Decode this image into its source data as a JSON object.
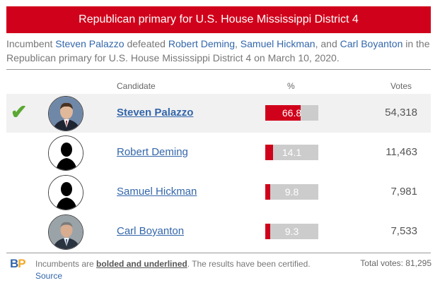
{
  "header": {
    "title": "Republican primary for U.S. House Mississippi District 4"
  },
  "intro": {
    "prefix": "Incumbent ",
    "winner": "Steven Palazzo",
    "defeated": " defeated ",
    "c1": "Robert Deming",
    "comma1": ", ",
    "c2": "Samuel Hickman",
    "and": ", and ",
    "c3": "Carl Boyanton",
    "suffix": " in the Republican primary for U.S. House Mississippi District 4 on March 10, 2020."
  },
  "columns": {
    "candidate": "Candidate",
    "pct": "%",
    "votes": "Votes"
  },
  "candidates": [
    {
      "name": "Steven Palazzo",
      "pct": "66.8",
      "pct_value": 66.8,
      "votes": "54,318",
      "winner": true,
      "incumbent": true,
      "avatar": "photo-avatar"
    },
    {
      "name": "Robert Deming",
      "pct": "14.1",
      "pct_value": 14.1,
      "votes": "11,463",
      "winner": false,
      "incumbent": false,
      "avatar": "silhouette-icon"
    },
    {
      "name": "Samuel Hickman",
      "pct": "9.8",
      "pct_value": 9.8,
      "votes": "7,981",
      "winner": false,
      "incumbent": false,
      "avatar": "silhouette-icon"
    },
    {
      "name": "Carl Boyanton",
      "pct": "9.3",
      "pct_value": 9.3,
      "votes": "7,533",
      "winner": false,
      "incumbent": false,
      "avatar": "photo-avatar"
    }
  ],
  "footer": {
    "logo_b": "B",
    "logo_p": "P",
    "note_prefix": "Incumbents are ",
    "note_strong": "bolded and underlined",
    "note_suffix": ". The results have been certified. ",
    "source": "Source",
    "total": "Total votes: 81,295"
  },
  "colors": {
    "header": "#d0021b",
    "bar_fill": "#d0021b",
    "bar_bg": "#cccccc",
    "link": "#3366aa",
    "check": "#5aa832"
  }
}
